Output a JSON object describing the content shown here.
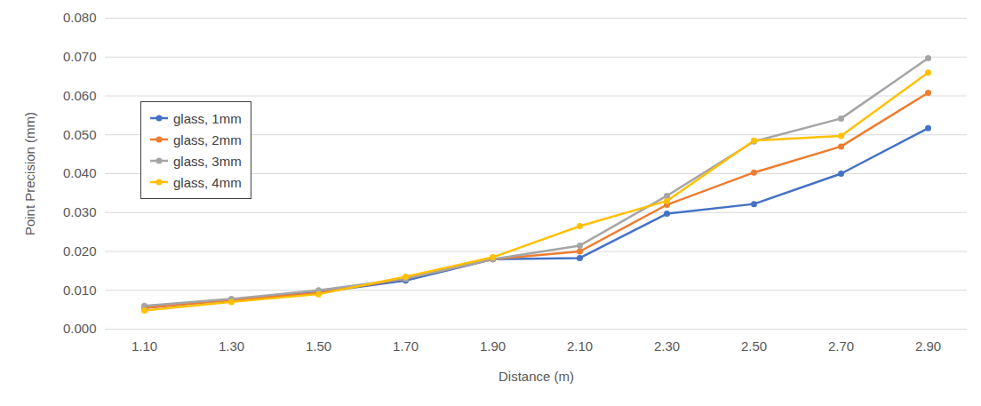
{
  "chart_data": {
    "type": "line",
    "xlabel": "Distance (m)",
    "ylabel": "Point Precision (mm)",
    "categories": [
      "1.10",
      "1.30",
      "1.50",
      "1.70",
      "1.90",
      "2.10",
      "2.30",
      "2.50",
      "2.70",
      "2.90"
    ],
    "series": [
      {
        "name": "glass, 1mm",
        "color": "#4472c4",
        "values": [
          0.0055,
          0.0075,
          0.0095,
          0.0125,
          0.018,
          0.0183,
          0.0297,
          0.0322,
          0.04,
          0.0517
        ]
      },
      {
        "name": "glass, 2mm",
        "color": "#ed7d31",
        "values": [
          0.0055,
          0.0075,
          0.0093,
          0.013,
          0.018,
          0.02,
          0.032,
          0.0403,
          0.047,
          0.0608
        ]
      },
      {
        "name": "glass, 3mm",
        "color": "#a5a5a5",
        "values": [
          0.006,
          0.0078,
          0.01,
          0.013,
          0.018,
          0.0215,
          0.0343,
          0.0483,
          0.0542,
          0.0697
        ]
      },
      {
        "name": "glass, 4mm",
        "color": "#ffc000",
        "values": [
          0.0048,
          0.007,
          0.009,
          0.0135,
          0.0185,
          0.0265,
          0.033,
          0.0485,
          0.0497,
          0.066
        ]
      }
    ],
    "ylim": [
      0,
      0.08
    ],
    "yticks": [
      {
        "value": 0,
        "label": "0.000"
      },
      {
        "value": 0.01,
        "label": "0.010"
      },
      {
        "value": 0.02,
        "label": "0.020"
      },
      {
        "value": 0.03,
        "label": "0.030"
      },
      {
        "value": 0.04,
        "label": "0.040"
      },
      {
        "value": 0.05,
        "label": "0.050"
      },
      {
        "value": 0.06,
        "label": "0.060"
      },
      {
        "value": 0.07,
        "label": "0.070"
      },
      {
        "value": 0.08,
        "label": "0.080"
      }
    ],
    "grid": true,
    "legend": "upper left",
    "marker": "circle"
  }
}
